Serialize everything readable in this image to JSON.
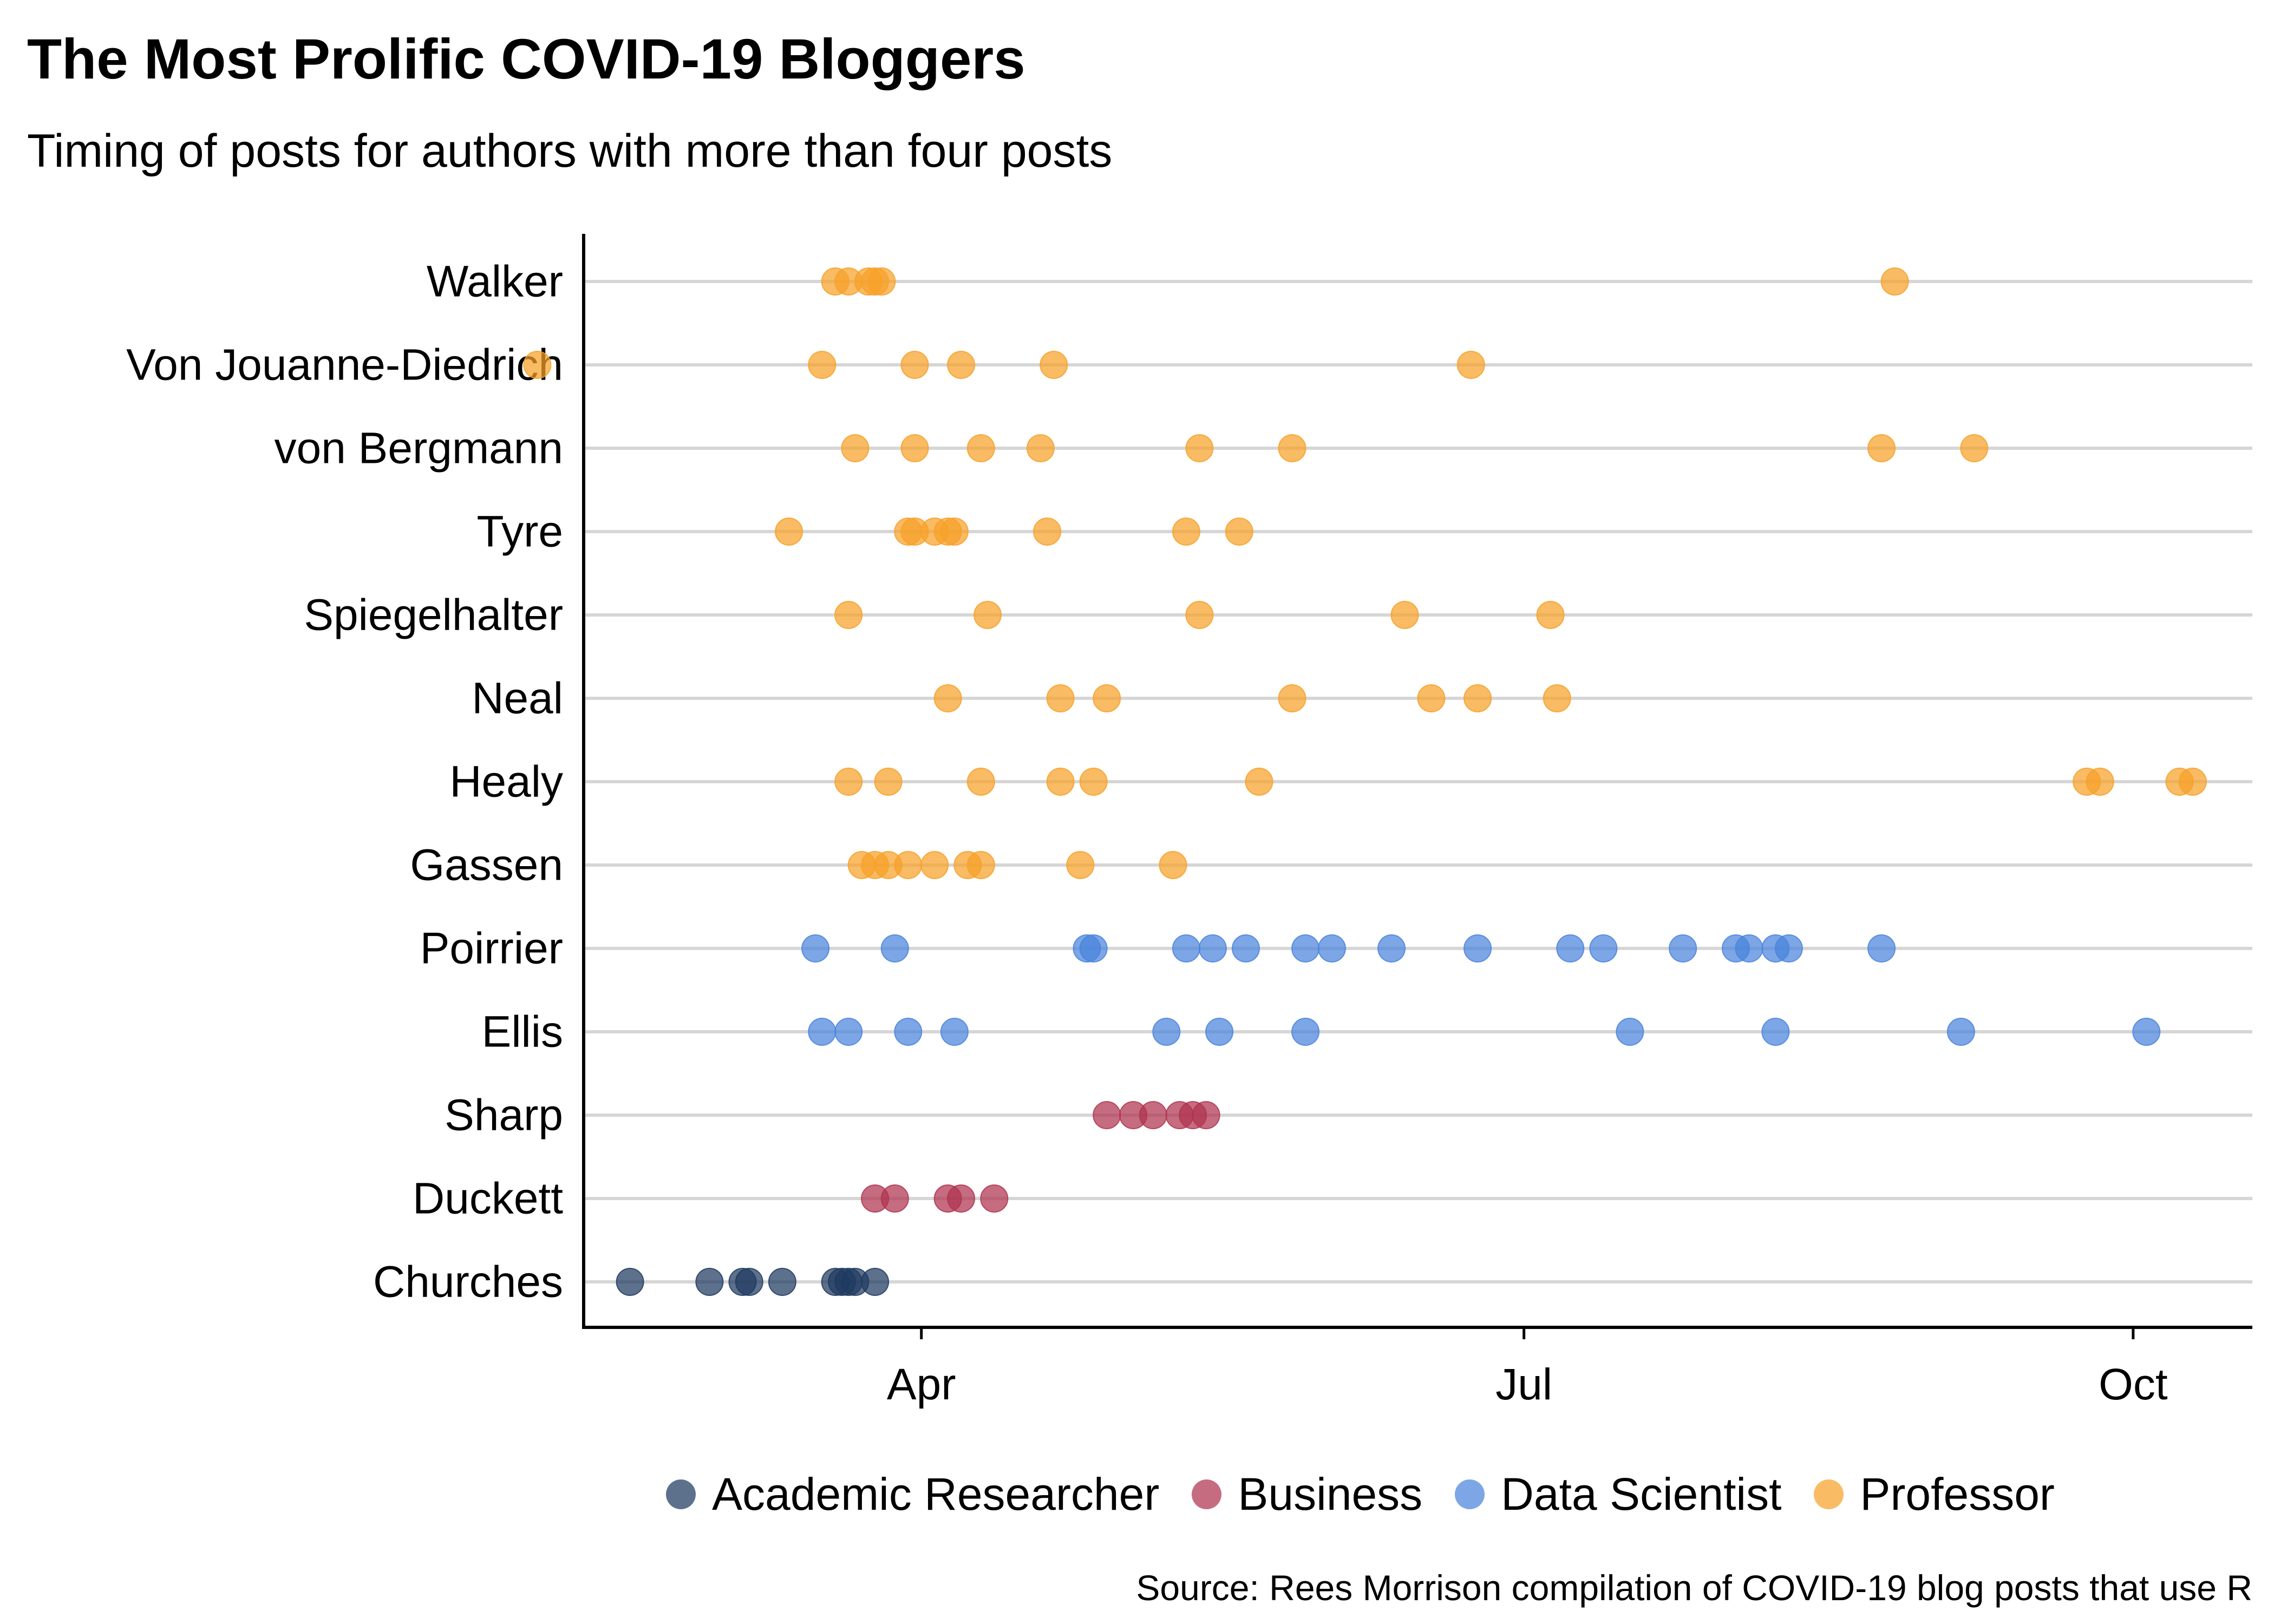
{
  "chart_data": {
    "type": "scatter",
    "title": "The Most Prolific COVID-19 Bloggers",
    "subtitle": "Timing of posts for authors with more than four posts",
    "caption": "Source: Rees Morrison compilation of COVID-19 blog posts that use R",
    "xlabel": "",
    "ylabel": "",
    "x_axis": {
      "type": "date",
      "range": [
        "2020-02-10",
        "2020-10-19"
      ],
      "ticks": [
        {
          "value": "2020-04-01",
          "label": "Apr"
        },
        {
          "value": "2020-07-01",
          "label": "Jul"
        },
        {
          "value": "2020-10-01",
          "label": "Oct"
        }
      ]
    },
    "categories": [
      "Walker",
      "Von Jouanne-Diedrich",
      "von Bergmann",
      "Tyre",
      "Spiegelhalter",
      "Neal",
      "Healy",
      "Gassen",
      "Poirrier",
      "Ellis",
      "Sharp",
      "Duckett",
      "Churches"
    ],
    "grid": "horizontal",
    "legend_position": "bottom",
    "series": [
      {
        "name": "Academic Researcher",
        "color": "#1f3a60",
        "points": [
          {
            "author": "Churches",
            "dates": [
              "2020-02-17",
              "2020-02-29",
              "2020-03-05",
              "2020-03-06",
              "2020-03-11",
              "2020-03-19",
              "2020-03-20",
              "2020-03-21",
              "2020-03-22",
              "2020-03-25"
            ]
          }
        ]
      },
      {
        "name": "Business",
        "color": "#b0334f",
        "points": [
          {
            "author": "Sharp",
            "dates": [
              "2020-04-29",
              "2020-05-03",
              "2020-05-06",
              "2020-05-10",
              "2020-05-12",
              "2020-05-14"
            ]
          },
          {
            "author": "Duckett",
            "dates": [
              "2020-03-25",
              "2020-03-28",
              "2020-04-05",
              "2020-04-07",
              "2020-04-12"
            ]
          }
        ]
      },
      {
        "name": "Data Scientist",
        "color": "#4a84dc",
        "points": [
          {
            "author": "Poirrier",
            "dates": [
              "2020-03-16",
              "2020-03-28",
              "2020-04-26",
              "2020-04-27",
              "2020-05-11",
              "2020-05-15",
              "2020-05-20",
              "2020-05-29",
              "2020-06-02",
              "2020-06-11",
              "2020-06-24",
              "2020-07-08",
              "2020-07-13",
              "2020-07-25",
              "2020-08-02",
              "2020-08-04",
              "2020-08-08",
              "2020-08-10",
              "2020-08-24"
            ]
          },
          {
            "author": "Ellis",
            "dates": [
              "2020-03-17",
              "2020-03-21",
              "2020-03-30",
              "2020-04-06",
              "2020-05-08",
              "2020-05-16",
              "2020-05-29",
              "2020-07-17",
              "2020-08-08",
              "2020-09-05",
              "2020-10-03"
            ]
          }
        ]
      },
      {
        "name": "Professor",
        "color": "#f7a128",
        "points": [
          {
            "author": "Walker",
            "dates": [
              "2020-03-19",
              "2020-03-21",
              "2020-03-24",
              "2020-03-25",
              "2020-03-26",
              "2020-08-26"
            ]
          },
          {
            "author": "Von Jouanne-Diedrich",
            "dates": [
              "2020-02-03",
              "2020-03-17",
              "2020-03-31",
              "2020-04-07",
              "2020-04-21",
              "2020-06-23"
            ]
          },
          {
            "author": "von Bergmann",
            "dates": [
              "2020-03-22",
              "2020-03-31",
              "2020-04-10",
              "2020-04-19",
              "2020-05-13",
              "2020-05-27",
              "2020-08-24",
              "2020-09-07"
            ]
          },
          {
            "author": "Tyre",
            "dates": [
              "2020-03-12",
              "2020-03-30",
              "2020-03-31",
              "2020-04-03",
              "2020-04-05",
              "2020-04-06",
              "2020-04-20",
              "2020-05-11",
              "2020-05-19"
            ]
          },
          {
            "author": "Spiegelhalter",
            "dates": [
              "2020-03-21",
              "2020-04-11",
              "2020-05-13",
              "2020-06-13",
              "2020-07-05"
            ]
          },
          {
            "author": "Neal",
            "dates": [
              "2020-04-05",
              "2020-04-22",
              "2020-04-29",
              "2020-05-27",
              "2020-06-17",
              "2020-06-24",
              "2020-07-06"
            ]
          },
          {
            "author": "Healy",
            "dates": [
              "2020-03-21",
              "2020-03-27",
              "2020-04-10",
              "2020-04-22",
              "2020-04-27",
              "2020-05-22",
              "2020-09-24",
              "2020-09-26",
              "2020-10-08",
              "2020-10-10"
            ]
          },
          {
            "author": "Gassen",
            "dates": [
              "2020-03-23",
              "2020-03-25",
              "2020-03-27",
              "2020-03-30",
              "2020-04-03",
              "2020-04-08",
              "2020-04-10",
              "2020-04-25",
              "2020-05-09"
            ]
          }
        ]
      }
    ]
  }
}
